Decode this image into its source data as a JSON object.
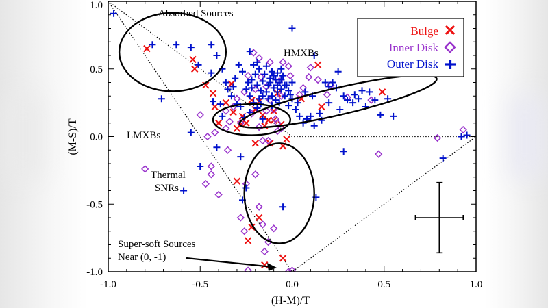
{
  "chart_data": {
    "type": "scatter",
    "title": "",
    "xlabel": "(H-M)/T",
    "ylabel": "(M-S)/T",
    "xlim": [
      -1.0,
      1.0
    ],
    "ylim": [
      -1.0,
      1.0
    ],
    "xticks": [
      -1.0,
      -0.5,
      0.0,
      0.5,
      1.0
    ],
    "yticks": [
      -1.0,
      -0.5,
      0.0,
      0.5,
      1.0
    ],
    "xtick_labels": [
      "-1.0",
      "-0.5",
      "0.0",
      "0.5",
      "1.0"
    ],
    "ytick_labels": [
      "-1.0",
      "-0.5",
      "0.0",
      "0.5",
      "1.0"
    ],
    "grid": false,
    "legend_position": "top-right",
    "series": [
      {
        "name": "Bulge",
        "marker": "x",
        "color": "#ee1111",
        "points": [
          [
            -0.79,
            0.65
          ],
          [
            -0.54,
            0.57
          ],
          [
            -0.53,
            0.5
          ],
          [
            -0.47,
            0.38
          ],
          [
            -0.43,
            0.32
          ],
          [
            -0.42,
            0.22
          ],
          [
            -0.4,
            0.1
          ],
          [
            -0.32,
            0.18
          ],
          [
            -0.3,
            0.06
          ],
          [
            -0.27,
            0.15
          ],
          [
            -0.25,
            0.1
          ],
          [
            -0.22,
            0.27
          ],
          [
            -0.2,
            0.2
          ],
          [
            -0.18,
            0.26
          ],
          [
            -0.16,
            0.16
          ],
          [
            -0.15,
            0.08
          ],
          [
            -0.13,
            0.12
          ],
          [
            -0.12,
            -0.05
          ],
          [
            -0.1,
            0.19
          ],
          [
            -0.08,
            0.32
          ],
          [
            -0.05,
            -0.07
          ],
          [
            -0.06,
            0.09
          ],
          [
            -0.03,
            -0.02
          ],
          [
            0.05,
            0.28
          ],
          [
            -0.1,
            0.12
          ],
          [
            -0.2,
            -0.05
          ],
          [
            -0.22,
            -0.67
          ],
          [
            -0.24,
            -0.77
          ],
          [
            -0.3,
            -0.33
          ],
          [
            -0.05,
            -0.9
          ],
          [
            -0.15,
            -0.95
          ],
          [
            0.14,
            0.53
          ],
          [
            0.16,
            0.22
          ],
          [
            0.49,
            0.33
          ],
          [
            -0.33,
            0.39
          ],
          [
            -0.36,
            0.25
          ],
          [
            -0.28,
            0.09
          ],
          [
            -0.18,
            -0.6
          ]
        ]
      },
      {
        "name": "Inner Disk",
        "marker": "diamond",
        "color": "#9933cc",
        "points": [
          [
            -0.8,
            -0.24
          ],
          [
            -0.44,
            -0.22
          ],
          [
            -0.47,
            -0.35
          ],
          [
            -0.44,
            -0.28
          ],
          [
            -0.5,
            0.16
          ],
          [
            -0.42,
            0.03
          ],
          [
            -0.4,
            -0.43
          ],
          [
            -0.35,
            -0.1
          ],
          [
            -0.28,
            -0.6
          ],
          [
            -0.26,
            -0.7
          ],
          [
            -0.25,
            -0.35
          ],
          [
            -0.2,
            -0.28
          ],
          [
            -0.18,
            -0.52
          ],
          [
            -0.15,
            -0.85
          ],
          [
            -0.13,
            -0.78
          ],
          [
            -0.16,
            -0.65
          ],
          [
            -0.1,
            -0.68
          ],
          [
            -0.08,
            0.04
          ],
          [
            -0.05,
            0.55
          ],
          [
            -0.02,
            0.52
          ],
          [
            -0.01,
            0.45
          ],
          [
            -0.36,
            0.06
          ],
          [
            -0.32,
            0.22
          ],
          [
            -0.28,
            0.1
          ],
          [
            -0.22,
            0.17
          ],
          [
            -0.26,
            0.33
          ],
          [
            -0.24,
            0.45
          ],
          [
            -0.21,
            0.62
          ],
          [
            -0.18,
            0.58
          ],
          [
            -0.17,
            0.44
          ],
          [
            -0.14,
            0.37
          ],
          [
            -0.12,
            0.27
          ],
          [
            -0.1,
            0.2
          ],
          [
            -0.08,
            0.1
          ],
          [
            -0.06,
            0.06
          ],
          [
            -0.18,
            0.07
          ],
          [
            -0.16,
            -0.03
          ],
          [
            -0.14,
            0.19
          ],
          [
            -0.13,
            -0.03
          ],
          [
            -0.09,
            0.13
          ],
          [
            -0.07,
            0.41
          ],
          [
            0.04,
            0.31
          ],
          [
            0.06,
            0.36
          ],
          [
            0.1,
            0.51
          ],
          [
            0.14,
            0.42
          ],
          [
            0.19,
            0.31
          ],
          [
            0.21,
            0.38
          ],
          [
            0.3,
            0.29
          ],
          [
            0.43,
            0.27
          ],
          [
            0.47,
            -0.13
          ],
          [
            0.79,
            -0.01
          ],
          [
            0.93,
            0.05
          ],
          [
            -0.46,
            0.0
          ],
          [
            -0.24,
            -0.99
          ],
          [
            -0.02,
            -1.0
          ],
          [
            0.0,
            -0.99
          ],
          [
            -0.34,
            0.11
          ],
          [
            -0.3,
            0.28
          ],
          [
            -0.2,
            0.35
          ],
          [
            -0.12,
            0.55
          ],
          [
            -0.36,
            0.19
          ],
          [
            -0.06,
            0.3
          ],
          [
            0.09,
            0.44
          ]
        ]
      },
      {
        "name": "Outer Disk",
        "marker": "plus",
        "color": "#0011cc",
        "points": [
          [
            -0.97,
            0.91
          ],
          [
            -0.76,
            0.68
          ],
          [
            -0.71,
            0.28
          ],
          [
            -0.63,
            0.68
          ],
          [
            -0.55,
            0.66
          ],
          [
            -0.51,
            0.53
          ],
          [
            -0.44,
            0.47
          ],
          [
            -0.43,
            0.26
          ],
          [
            -0.41,
            0.6
          ],
          [
            -0.38,
            0.5
          ],
          [
            -0.36,
            0.4
          ],
          [
            -0.33,
            0.3
          ],
          [
            -0.31,
            0.43
          ],
          [
            -0.29,
            0.53
          ],
          [
            -0.27,
            0.48
          ],
          [
            -0.25,
            0.35
          ],
          [
            -0.24,
            0.4
          ],
          [
            -0.23,
            0.3
          ],
          [
            -0.22,
            0.42
          ],
          [
            -0.21,
            0.53
          ],
          [
            -0.2,
            0.46
          ],
          [
            -0.19,
            0.38
          ],
          [
            -0.18,
            0.5
          ],
          [
            -0.17,
            0.34
          ],
          [
            -0.16,
            0.41
          ],
          [
            -0.15,
            0.46
          ],
          [
            -0.14,
            0.52
          ],
          [
            -0.13,
            0.38
          ],
          [
            -0.12,
            0.43
          ],
          [
            -0.11,
            0.48
          ],
          [
            -0.1,
            0.36
          ],
          [
            -0.09,
            0.42
          ],
          [
            -0.08,
            0.47
          ],
          [
            -0.07,
            0.4
          ],
          [
            -0.06,
            0.35
          ],
          [
            -0.05,
            0.45
          ],
          [
            -0.04,
            0.3
          ],
          [
            -0.03,
            0.38
          ],
          [
            -0.02,
            0.23
          ],
          [
            0.0,
            0.4
          ],
          [
            0.02,
            0.2
          ],
          [
            0.04,
            0.15
          ],
          [
            0.06,
            0.1
          ],
          [
            0.08,
            0.13
          ],
          [
            0.1,
            0.15
          ],
          [
            0.12,
            0.08
          ],
          [
            0.15,
            0.17
          ],
          [
            0.18,
            0.4
          ],
          [
            0.2,
            0.37
          ],
          [
            0.22,
            0.4
          ],
          [
            0.25,
            0.48
          ],
          [
            0.28,
            0.3
          ],
          [
            0.3,
            0.27
          ],
          [
            0.33,
            0.25
          ],
          [
            0.36,
            0.28
          ],
          [
            0.4,
            0.22
          ],
          [
            0.45,
            0.27
          ],
          [
            0.48,
            0.16
          ],
          [
            0.55,
            0.15
          ],
          [
            0.82,
            -0.16
          ],
          [
            0.92,
            0.0
          ],
          [
            0.95,
            0.01
          ],
          [
            0.28,
            -0.11
          ],
          [
            0.13,
            -0.45
          ],
          [
            0.12,
            0.6
          ],
          [
            0.0,
            0.8
          ],
          [
            -0.23,
            0.63
          ],
          [
            -0.44,
            0.68
          ],
          [
            -0.25,
            -0.38
          ],
          [
            -0.27,
            -0.47
          ],
          [
            -0.41,
            -0.08
          ],
          [
            -0.5,
            -0.22
          ],
          [
            -0.59,
            -0.4
          ],
          [
            -0.55,
            0.03
          ],
          [
            -0.38,
            0.15
          ],
          [
            -0.35,
            0.35
          ],
          [
            -0.28,
            0.22
          ],
          [
            -0.26,
            0.14
          ],
          [
            -0.23,
            0.18
          ],
          [
            -0.21,
            0.25
          ],
          [
            -0.19,
            0.21
          ],
          [
            -0.17,
            0.24
          ],
          [
            -0.16,
            0.13
          ],
          [
            -0.13,
            0.28
          ],
          [
            -0.11,
            0.3
          ],
          [
            -0.09,
            0.27
          ],
          [
            -0.07,
            0.25
          ],
          [
            -0.08,
            0.33
          ],
          [
            -0.06,
            0.42
          ],
          [
            -0.04,
            0.38
          ],
          [
            -0.02,
            0.34
          ],
          [
            -0.01,
            0.31
          ],
          [
            -0.05,
            -0.52
          ],
          [
            -0.28,
            -0.15
          ],
          [
            -0.3,
            0.24
          ],
          [
            -0.32,
            0.37
          ],
          [
            -0.39,
            0.24
          ],
          [
            -0.19,
            0.55
          ],
          [
            -0.14,
            0.33
          ],
          [
            -0.12,
            0.4
          ],
          [
            -0.1,
            0.45
          ],
          [
            -0.08,
            0.38
          ],
          [
            -0.06,
            0.5
          ],
          [
            -0.22,
            0.36
          ],
          [
            -0.16,
            0.3
          ],
          [
            -0.11,
            0.23
          ],
          [
            -0.18,
            0.28
          ],
          [
            0.0,
            0.28
          ],
          [
            0.03,
            0.25
          ],
          [
            0.07,
            0.33
          ],
          [
            0.16,
            0.12
          ],
          [
            0.24,
            0.36
          ],
          [
            0.34,
            0.31
          ],
          [
            0.38,
            0.34
          ],
          [
            0.42,
            0.33
          ],
          [
            0.52,
            0.28
          ],
          [
            0.26,
            0.2
          ],
          [
            0.2,
            0.25
          ],
          [
            0.11,
            0.3
          ]
        ]
      }
    ],
    "ellipses": [
      {
        "name": "Absorbed Sources",
        "cx": -0.65,
        "cy": 0.625,
        "rx": 0.29,
        "ry": 0.29,
        "angle": 0
      },
      {
        "name": "HMXBs",
        "cx": 0.25,
        "cy": 0.26,
        "rx": 0.55,
        "ry": 0.1,
        "angle": -13
      },
      {
        "name": "LMXBs",
        "cx": -0.22,
        "cy": 0.125,
        "rx": 0.21,
        "ry": 0.115,
        "angle": 0
      },
      {
        "name": "Thermal SNRs",
        "cx": -0.07,
        "cy": -0.42,
        "rx": 0.19,
        "ry": 0.37,
        "angle": 0
      }
    ],
    "boundary": [
      [
        -1.0,
        1.0
      ],
      [
        0.0,
        0.0
      ],
      [
        1.0,
        0.0
      ],
      [
        0.0,
        -1.0
      ]
    ],
    "annotations": {
      "absorbed": "Absorbed Sources",
      "hmxb": "HMXBs",
      "lmxb": "LMXBs",
      "thermal_line1": "Thermal",
      "thermal_line2": "SNRs",
      "supersoft_line1": "Super-soft Sources",
      "supersoft_line2": "Near (0, -1)"
    },
    "error_bar": {
      "x": 0.8,
      "y": -0.6,
      "dx": 0.13,
      "dy": 0.26
    }
  }
}
